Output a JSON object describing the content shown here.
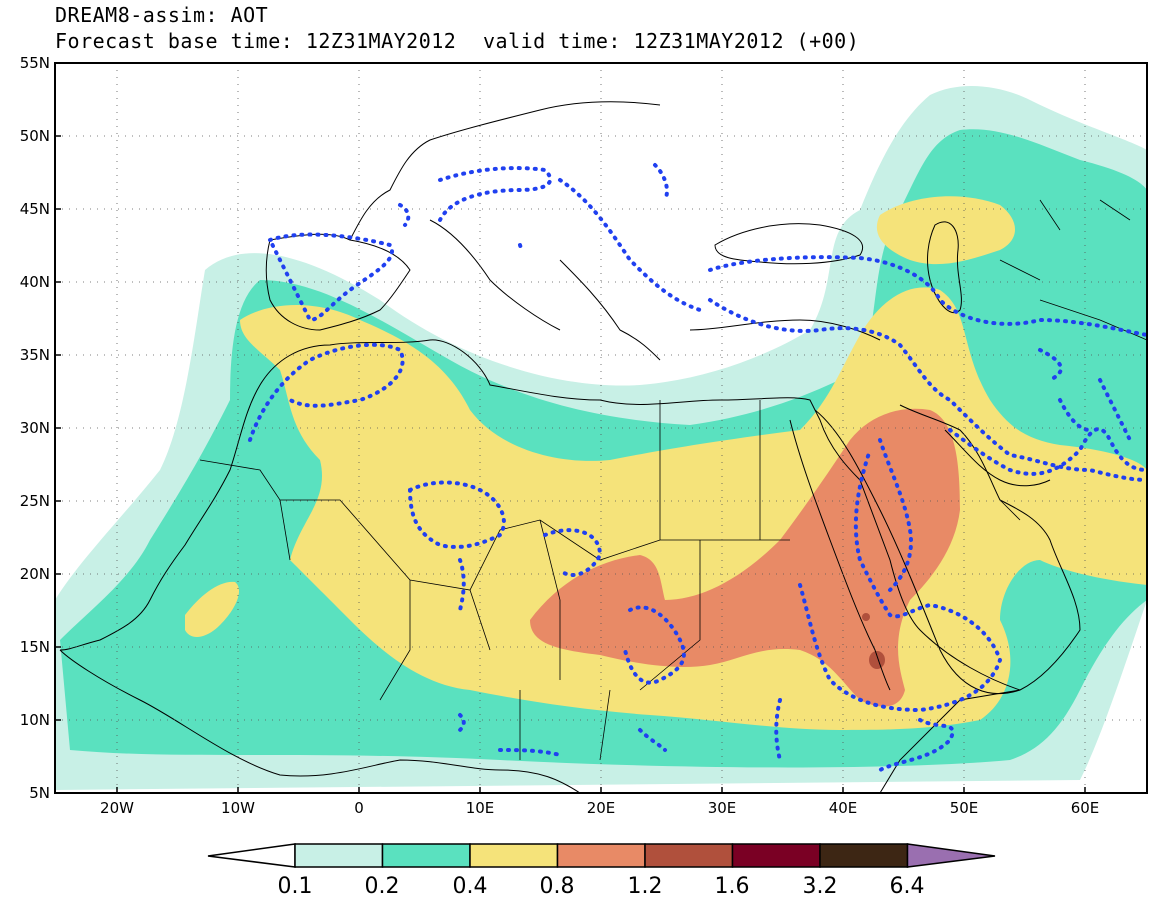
{
  "header": {
    "title": "DREAM8-assim: AOT",
    "base_time": "Forecast base time: 12Z31MAY2012",
    "valid_time": "valid time: 12Z31MAY2012 (+00)"
  },
  "map": {
    "lat_labels": [
      "55N",
      "50N",
      "45N",
      "40N",
      "35N",
      "30N",
      "25N",
      "20N",
      "15N",
      "10N",
      "5N"
    ],
    "lon_labels": [
      "20W",
      "10W",
      "0",
      "10E",
      "20E",
      "30E",
      "40E",
      "50E",
      "60E"
    ],
    "extent": {
      "lon_min": -25,
      "lon_max": 65,
      "lat_min": 5,
      "lat_max": 55
    }
  },
  "colorbar": {
    "labels": [
      "0.1",
      "0.2",
      "0.4",
      "0.8",
      "1.2",
      "1.6",
      "3.2",
      "6.4"
    ],
    "colors": [
      "#c8f0e6",
      "#5ae1bf",
      "#f5e37a",
      "#e88a66",
      "#b0503c",
      "#7a0024",
      "#3d2614"
    ],
    "under_color": "#ffffff",
    "over_color": "#9a6fb0"
  },
  "colors": {
    "aot_0_1": "#c8f0e6",
    "aot_0_2": "#5ae1bf",
    "aot_0_4": "#f5e37a",
    "aot_0_8": "#e88a66",
    "aot_1_2": "#b0503c",
    "contour": "#2040f0"
  }
}
